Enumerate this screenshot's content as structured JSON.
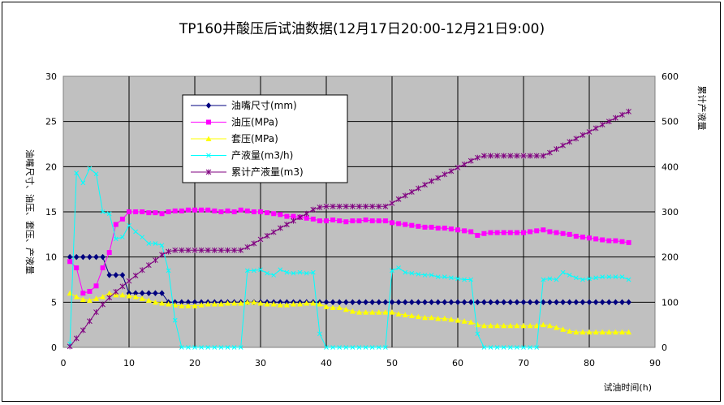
{
  "chart_data": {
    "type": "line",
    "title": "TP160井酸压后试油数据(12月17日20:00-12月21日9:00)",
    "xlabel": "试油时间(h)",
    "ylabel": "油嘴尺寸、油压、套压、产液量",
    "y2label": "累计产液量",
    "xlim": [
      0,
      90
    ],
    "ylim": [
      0,
      30
    ],
    "y2lim": [
      0,
      600
    ],
    "xticks": [
      "0",
      "10",
      "20",
      "30",
      "40",
      "50",
      "60",
      "70",
      "80",
      "90"
    ],
    "yticks": [
      "0",
      "5",
      "10",
      "15",
      "20",
      "25",
      "30"
    ],
    "y2ticks": [
      "0",
      "100",
      "200",
      "300",
      "400",
      "500",
      "600"
    ],
    "grid": true,
    "legend_position": "upper-center",
    "series": [
      {
        "name": "油嘴尺寸(mm)",
        "color": "#000080",
        "marker": "diamond",
        "axis": "left",
        "x": [
          1,
          2,
          3,
          4,
          5,
          6,
          7,
          8,
          9,
          10,
          11,
          12,
          13,
          14,
          15,
          16,
          17,
          18,
          19,
          20,
          21,
          22,
          23,
          24,
          25,
          26,
          27,
          28,
          29,
          30,
          31,
          32,
          33,
          34,
          35,
          36,
          37,
          38,
          39,
          40,
          41,
          42,
          43,
          44,
          45,
          46,
          47,
          48,
          49,
          50,
          51,
          52,
          53,
          54,
          55,
          56,
          57,
          58,
          59,
          60,
          61,
          62,
          63,
          64,
          65,
          66,
          67,
          68,
          69,
          70,
          71,
          72,
          73,
          74,
          75,
          76,
          77,
          78,
          79,
          80,
          81,
          82,
          83,
          84,
          85,
          86
        ],
        "y": [
          10,
          10,
          10,
          10,
          10,
          10,
          8,
          8,
          8,
          6,
          6,
          6,
          6,
          6,
          6,
          5,
          5,
          5,
          5,
          5,
          5,
          5,
          5,
          5,
          5,
          5,
          5,
          5,
          5,
          5,
          5,
          5,
          5,
          5,
          5,
          5,
          5,
          5,
          5,
          5,
          5,
          5,
          5,
          5,
          5,
          5,
          5,
          5,
          5,
          5,
          5,
          5,
          5,
          5,
          5,
          5,
          5,
          5,
          5,
          5,
          5,
          5,
          5,
          5,
          5,
          5,
          5,
          5,
          5,
          5,
          5,
          5,
          5,
          5,
          5,
          5,
          5,
          5,
          5,
          5,
          5,
          5,
          5,
          5,
          5,
          5
        ]
      },
      {
        "name": "油压(MPa)",
        "color": "#FF00FF",
        "marker": "square",
        "axis": "left",
        "x": [
          1,
          2,
          3,
          4,
          5,
          6,
          7,
          8,
          9,
          10,
          11,
          12,
          13,
          14,
          15,
          16,
          17,
          18,
          19,
          20,
          21,
          22,
          23,
          24,
          25,
          26,
          27,
          28,
          29,
          30,
          31,
          32,
          33,
          34,
          35,
          36,
          37,
          38,
          39,
          40,
          41,
          42,
          43,
          44,
          45,
          46,
          47,
          48,
          49,
          50,
          51,
          52,
          53,
          54,
          55,
          56,
          57,
          58,
          59,
          60,
          61,
          62,
          63,
          64,
          65,
          66,
          67,
          68,
          69,
          70,
          71,
          72,
          73,
          74,
          75,
          76,
          77,
          78,
          79,
          80,
          81,
          82,
          83,
          84,
          85,
          86
        ],
        "y": [
          9.5,
          8.8,
          6.0,
          6.2,
          6.8,
          8.8,
          10.5,
          13.6,
          14.2,
          15.0,
          15.0,
          15.0,
          14.9,
          14.9,
          14.8,
          15.0,
          15.1,
          15.1,
          15.2,
          15.2,
          15.2,
          15.2,
          15.1,
          15.0,
          15.1,
          15.0,
          15.2,
          15.1,
          15.0,
          15.0,
          14.9,
          14.8,
          14.7,
          14.5,
          14.5,
          14.4,
          14.3,
          14.2,
          14.0,
          14.0,
          14.1,
          14.0,
          13.9,
          14.0,
          14.0,
          14.1,
          14.0,
          14.0,
          14.0,
          13.8,
          13.7,
          13.6,
          13.5,
          13.4,
          13.3,
          13.3,
          13.2,
          13.2,
          13.1,
          13.0,
          12.9,
          12.8,
          12.4,
          12.6,
          12.7,
          12.7,
          12.7,
          12.7,
          12.7,
          12.7,
          12.8,
          12.9,
          13.0,
          12.8,
          12.7,
          12.6,
          12.5,
          12.3,
          12.2,
          12.1,
          12.0,
          11.9,
          11.8,
          11.8,
          11.7,
          11.6
        ]
      },
      {
        "name": "套压(MPa)",
        "color": "#FFFF00",
        "marker": "triangle",
        "axis": "left",
        "x": [
          1,
          2,
          3,
          4,
          5,
          6,
          7,
          8,
          9,
          10,
          11,
          12,
          13,
          14,
          15,
          16,
          17,
          18,
          19,
          20,
          21,
          22,
          23,
          24,
          25,
          26,
          27,
          28,
          29,
          30,
          31,
          32,
          33,
          34,
          35,
          36,
          37,
          38,
          39,
          40,
          41,
          42,
          43,
          44,
          45,
          46,
          47,
          48,
          49,
          50,
          51,
          52,
          53,
          54,
          55,
          56,
          57,
          58,
          59,
          60,
          61,
          62,
          63,
          64,
          65,
          66,
          67,
          68,
          69,
          70,
          71,
          72,
          73,
          74,
          75,
          76,
          77,
          78,
          79,
          80,
          81,
          82,
          83,
          84,
          85,
          86
        ],
        "y": [
          6.0,
          5.6,
          5.3,
          5.2,
          5.4,
          5.6,
          6.0,
          5.8,
          5.8,
          5.7,
          5.6,
          5.4,
          5.2,
          5.0,
          4.9,
          4.8,
          4.7,
          4.6,
          4.6,
          4.6,
          4.7,
          4.8,
          4.8,
          4.8,
          4.9,
          4.9,
          4.9,
          5.0,
          5.0,
          4.9,
          4.8,
          4.8,
          4.7,
          4.7,
          4.8,
          4.8,
          4.9,
          4.9,
          4.8,
          4.5,
          4.4,
          4.4,
          4.2,
          4.0,
          3.9,
          3.9,
          3.9,
          3.9,
          3.9,
          3.9,
          3.7,
          3.6,
          3.5,
          3.4,
          3.3,
          3.3,
          3.2,
          3.2,
          3.1,
          3.0,
          2.9,
          2.8,
          2.5,
          2.4,
          2.4,
          2.4,
          2.4,
          2.4,
          2.4,
          2.4,
          2.4,
          2.4,
          2.5,
          2.4,
          2.2,
          2.0,
          1.8,
          1.7,
          1.7,
          1.7,
          1.7,
          1.7,
          1.7,
          1.7,
          1.7,
          1.7
        ]
      },
      {
        "name": "产液量(m3/h)",
        "color": "#00FFFF",
        "marker": "x",
        "axis": "left",
        "x": [
          1,
          2,
          3,
          4,
          5,
          6,
          7,
          8,
          9,
          10,
          11,
          12,
          13,
          14,
          15,
          16,
          17,
          18,
          19,
          20,
          21,
          22,
          23,
          24,
          25,
          26,
          27,
          28,
          29,
          30,
          31,
          32,
          33,
          34,
          35,
          36,
          37,
          38,
          39,
          40,
          41,
          42,
          43,
          44,
          45,
          46,
          47,
          48,
          49,
          50,
          51,
          52,
          53,
          54,
          55,
          56,
          57,
          58,
          59,
          60,
          61,
          62,
          63,
          64,
          65,
          66,
          67,
          68,
          69,
          70,
          71,
          72,
          73,
          74,
          75,
          76,
          77,
          78,
          79,
          80,
          81,
          82,
          83,
          84,
          85,
          86
        ],
        "y": [
          0.4,
          19.3,
          18.2,
          19.8,
          19.2,
          15.0,
          14.8,
          12.0,
          12.2,
          13.5,
          12.8,
          12.2,
          11.5,
          11.5,
          11.3,
          8.5,
          3.0,
          0,
          0,
          0,
          0,
          0,
          0,
          0,
          0,
          0,
          0,
          8.5,
          8.5,
          8.6,
          8.2,
          8.0,
          8.6,
          8.3,
          8.2,
          8.3,
          8.2,
          8.3,
          1.5,
          0,
          0,
          0,
          0,
          0,
          0,
          0,
          0,
          0,
          0,
          8.5,
          8.8,
          8.3,
          8.2,
          8.1,
          8.0,
          8.0,
          7.8,
          7.8,
          7.7,
          7.6,
          7.5,
          7.5,
          1.5,
          0,
          0,
          0,
          0,
          0,
          0,
          0,
          0,
          0,
          7.5,
          7.6,
          7.5,
          8.3,
          8.0,
          7.7,
          7.5,
          7.6,
          7.7,
          7.8,
          7.8,
          7.8,
          7.8,
          7.5
        ]
      },
      {
        "name": "累计产液量(m3)",
        "color": "#800080",
        "marker": "star",
        "axis": "right",
        "x": [
          1,
          2,
          3,
          4,
          5,
          6,
          7,
          8,
          9,
          10,
          11,
          12,
          13,
          14,
          15,
          16,
          17,
          18,
          19,
          20,
          21,
          22,
          23,
          24,
          25,
          26,
          27,
          28,
          29,
          30,
          31,
          32,
          33,
          34,
          35,
          36,
          37,
          38,
          39,
          40,
          41,
          42,
          43,
          44,
          45,
          46,
          47,
          48,
          49,
          50,
          51,
          52,
          53,
          54,
          55,
          56,
          57,
          58,
          59,
          60,
          61,
          62,
          63,
          64,
          65,
          66,
          67,
          68,
          69,
          70,
          71,
          72,
          73,
          74,
          75,
          76,
          77,
          78,
          79,
          80,
          81,
          82,
          83,
          84,
          85,
          86
        ],
        "y": [
          2,
          20,
          38,
          58,
          78,
          95,
          110,
          123,
          135,
          147,
          159,
          171,
          182,
          193,
          205,
          212,
          215,
          215,
          215,
          215,
          215,
          215,
          215,
          215,
          215,
          215,
          215,
          222,
          230,
          239,
          247,
          255,
          264,
          272,
          280,
          288,
          296,
          305,
          310,
          312,
          312,
          312,
          312,
          312,
          312,
          312,
          312,
          312,
          312,
          319,
          328,
          336,
          344,
          352,
          360,
          368,
          375,
          383,
          390,
          398,
          405,
          413,
          420,
          424,
          424,
          424,
          424,
          424,
          424,
          424,
          424,
          424,
          424,
          431,
          439,
          447,
          455,
          462,
          470,
          477,
          485,
          493,
          500,
          508,
          515,
          522
        ]
      }
    ]
  }
}
